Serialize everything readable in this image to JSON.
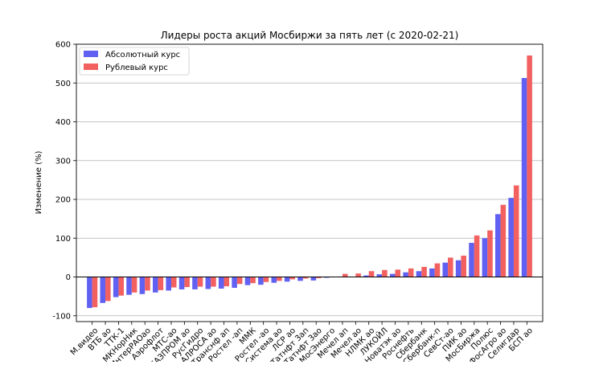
{
  "chart_data": {
    "type": "bar",
    "title": "Лидеры роста акций Мосбиржи за пять лет (с 2020-02-21)",
    "xlabel": "",
    "ylabel": "Изменение (%)",
    "ylim": [
      -115,
      600
    ],
    "yticks": [
      -100,
      0,
      100,
      200,
      300,
      400,
      500,
      600
    ],
    "grid": "y",
    "legend_position": "top-left",
    "categories": [
      "М.видео",
      "ВТБ ао",
      "ТТК-1",
      "МКНорНик",
      "ИнтерРАОао",
      "Аэрофлот",
      "МТС-ао",
      "ГАЗПРОМ ао",
      "РусГидро",
      "АЛРОСА ао",
      "Транснф ап",
      "Ростел -ап",
      "ММК",
      "Ростел -ао",
      "АФК Система ао",
      "ЛСР ао",
      "Татнфт 3ап",
      "Татнфт 3ао",
      "МосЭнерго",
      "Мечел ап",
      "Мечел ао",
      "НЛМК ао",
      "ЛУКОЙЛ",
      "Новатэк ао",
      "Роснефть",
      "Сбербанк",
      "Сбербанк-п",
      "СевСт-ао",
      "ПИК ао",
      "МосБиржа",
      "Полюс",
      "ФосАгро ао",
      "Селигдар",
      "БСП ао"
    ],
    "series": [
      {
        "name": "Абсолютный курс",
        "color": "#6060f2",
        "values": [
          -80,
          -67,
          -52,
          -46,
          -44,
          -40,
          -35,
          -32,
          -32,
          -31,
          -30,
          -28,
          -21,
          -20,
          -15,
          -12,
          -10,
          -9,
          -2,
          -1,
          0,
          4,
          7,
          8,
          12,
          15,
          22,
          37,
          43,
          88,
          100,
          162,
          204,
          513
        ]
      },
      {
        "name": "Рублевый курс",
        "color": "#f26060",
        "values": [
          -78,
          -62,
          -48,
          -40,
          -35,
          -34,
          -27,
          -26,
          -25,
          -25,
          -24,
          -18,
          -16,
          -13,
          -10,
          -6,
          -4,
          -3,
          1,
          8,
          9,
          15,
          18,
          19,
          22,
          26,
          35,
          50,
          55,
          107,
          120,
          186,
          236,
          571
        ]
      }
    ]
  }
}
